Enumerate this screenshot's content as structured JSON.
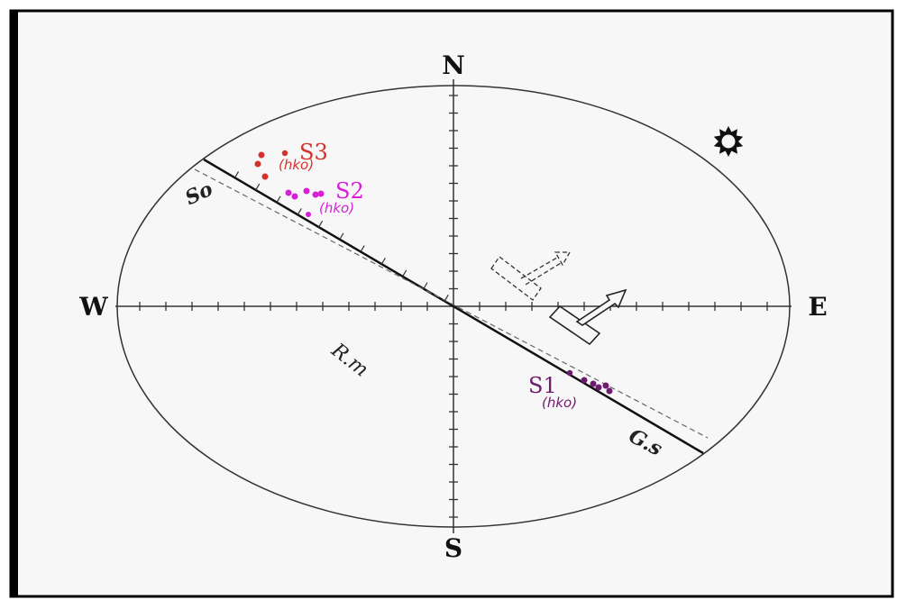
{
  "directions": {
    "north": "N",
    "south": "S",
    "east": "E",
    "west": "W"
  },
  "lines": {
    "so": "So",
    "gs": "G.s"
  },
  "region": "R.m",
  "clusters": [
    {
      "id": "s1",
      "label": "S1",
      "sublabel": "(hko)",
      "color": "#6e1a6e"
    },
    {
      "id": "s2",
      "label": "S2",
      "sublabel": "(hko)",
      "color": "#d81ed8"
    },
    {
      "id": "s3",
      "label": "S3",
      "sublabel": "(hko)",
      "color": "#d4322c"
    }
  ],
  "colors": {
    "frame": "#000000",
    "background": "#f7f7f7",
    "stroke": "#222222"
  },
  "icons": {
    "sun": "sun-icon"
  }
}
